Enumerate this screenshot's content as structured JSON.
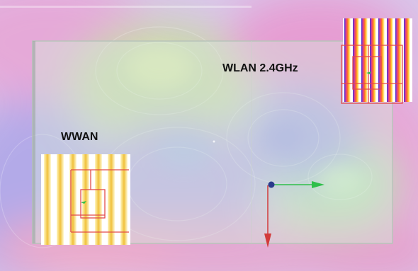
{
  "labels": {
    "wlan": "WLAN 2.4GHz",
    "wwan": "WWAN"
  },
  "colors": {
    "field_magenta": "#e79bd2",
    "field_blue": "#a9a4e6",
    "field_green": "#c6e6b4",
    "board_tint": "#d6ecdb",
    "board_edge": "#b8c4ba",
    "antenna_trace": "#e24a4a",
    "axis_green": "#2fbf4a",
    "axis_red": "#d23a3a",
    "axis_origin": "#2a3a8c"
  }
}
